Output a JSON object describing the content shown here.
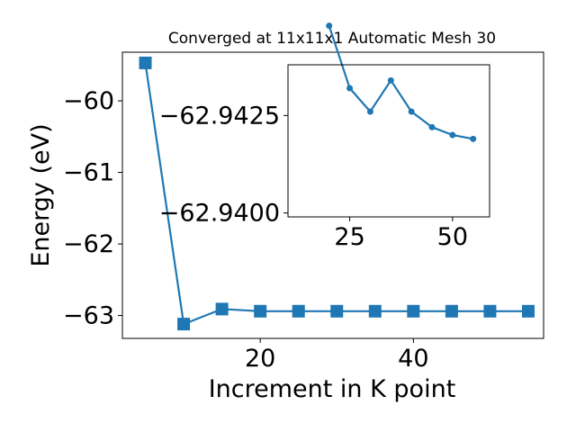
{
  "colors": {
    "series": "#1f77b4",
    "axes": "#000000",
    "background": "#ffffff"
  },
  "chart_data": [
    {
      "type": "line",
      "title": "Converged at 11x11x1 Automatic Mesh 30",
      "xlabel": "Increment in K point",
      "ylabel": "Energy (eV)",
      "marker": "square",
      "x": [
        5,
        10,
        15,
        20,
        25,
        30,
        35,
        40,
        45,
        50,
        55
      ],
      "y": [
        -59.47,
        -63.12,
        -62.91,
        -62.94,
        -62.94,
        -62.94,
        -62.94,
        -62.94,
        -62.94,
        -62.94,
        -62.94
      ],
      "xlim": [
        2,
        57
      ],
      "ylim": [
        -63.32,
        -59.32
      ],
      "xticks": [
        20,
        40
      ],
      "xtick_labels": [
        "20",
        "40"
      ],
      "yticks": [
        -60,
        -61,
        -62,
        -63
      ],
      "ytick_labels": [
        "−60",
        "−61",
        "−62",
        "−63"
      ],
      "grid": false
    },
    {
      "type": "line",
      "inset": true,
      "marker": "circle",
      "x": [
        20,
        25,
        30,
        35,
        40,
        45,
        50,
        55
      ],
      "y": [
        -62.9448,
        -62.9432,
        -62.9426,
        -62.9434,
        -62.9426,
        -62.9422,
        -62.942,
        -62.9419
      ],
      "xlim": [
        10,
        59
      ],
      "ylim": [
        -62.9399,
        -62.9438
      ],
      "xticks": [
        25,
        50
      ],
      "xtick_labels": [
        "25",
        "50"
      ],
      "yticks": [
        -62.9425,
        -62.94
      ],
      "ytick_labels": [
        "−62.9425",
        "−62.9400"
      ],
      "grid": false
    }
  ]
}
